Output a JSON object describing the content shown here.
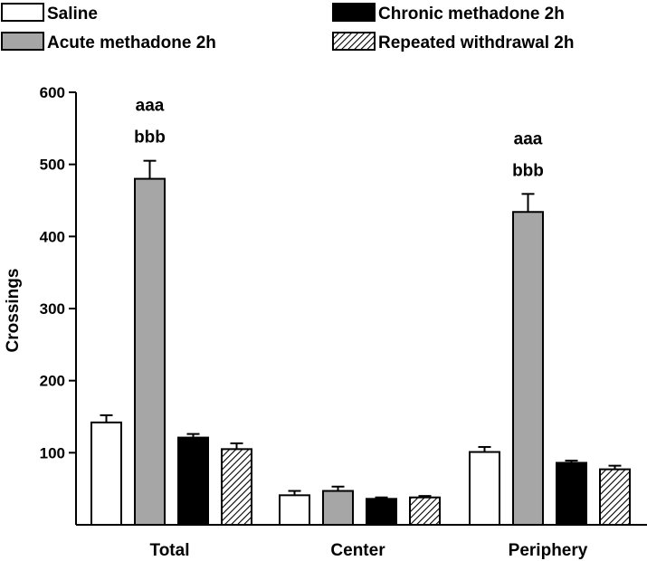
{
  "chart_data": {
    "type": "bar",
    "title": "",
    "xlabel": "",
    "ylabel": "Crossings",
    "ylim": [
      0,
      600
    ],
    "yticks": [
      100,
      200,
      300,
      400,
      500,
      600
    ],
    "categories": [
      "Total",
      "Center",
      "Periphery"
    ],
    "series": [
      {
        "name": "Saline",
        "values": [
          142,
          41,
          101
        ],
        "errors": [
          10,
          6,
          7
        ],
        "fill": "#ffffff",
        "pattern": "none"
      },
      {
        "name": "Acute methadone 2h",
        "values": [
          480,
          47,
          434
        ],
        "errors": [
          25,
          6,
          25
        ],
        "fill": "#a6a6a6",
        "pattern": "none"
      },
      {
        "name": "Chronic methadone 2h",
        "values": [
          121,
          36,
          86
        ],
        "errors": [
          5,
          2,
          3
        ],
        "fill": "#000000",
        "pattern": "none"
      },
      {
        "name": "Repeated withdrawal 2h",
        "values": [
          105,
          38,
          77
        ],
        "errors": [
          8,
          2,
          5
        ],
        "fill": "#ffffff",
        "pattern": "hatch"
      }
    ],
    "annotations": [
      {
        "category": "Total",
        "series": "Acute methadone 2h",
        "lines": [
          "aaa",
          "bbb"
        ]
      },
      {
        "category": "Periphery",
        "series": "Acute methadone 2h",
        "lines": [
          "aaa",
          "bbb"
        ]
      }
    ],
    "legend": {
      "placement": "top",
      "columns": 2
    },
    "grid": false
  }
}
